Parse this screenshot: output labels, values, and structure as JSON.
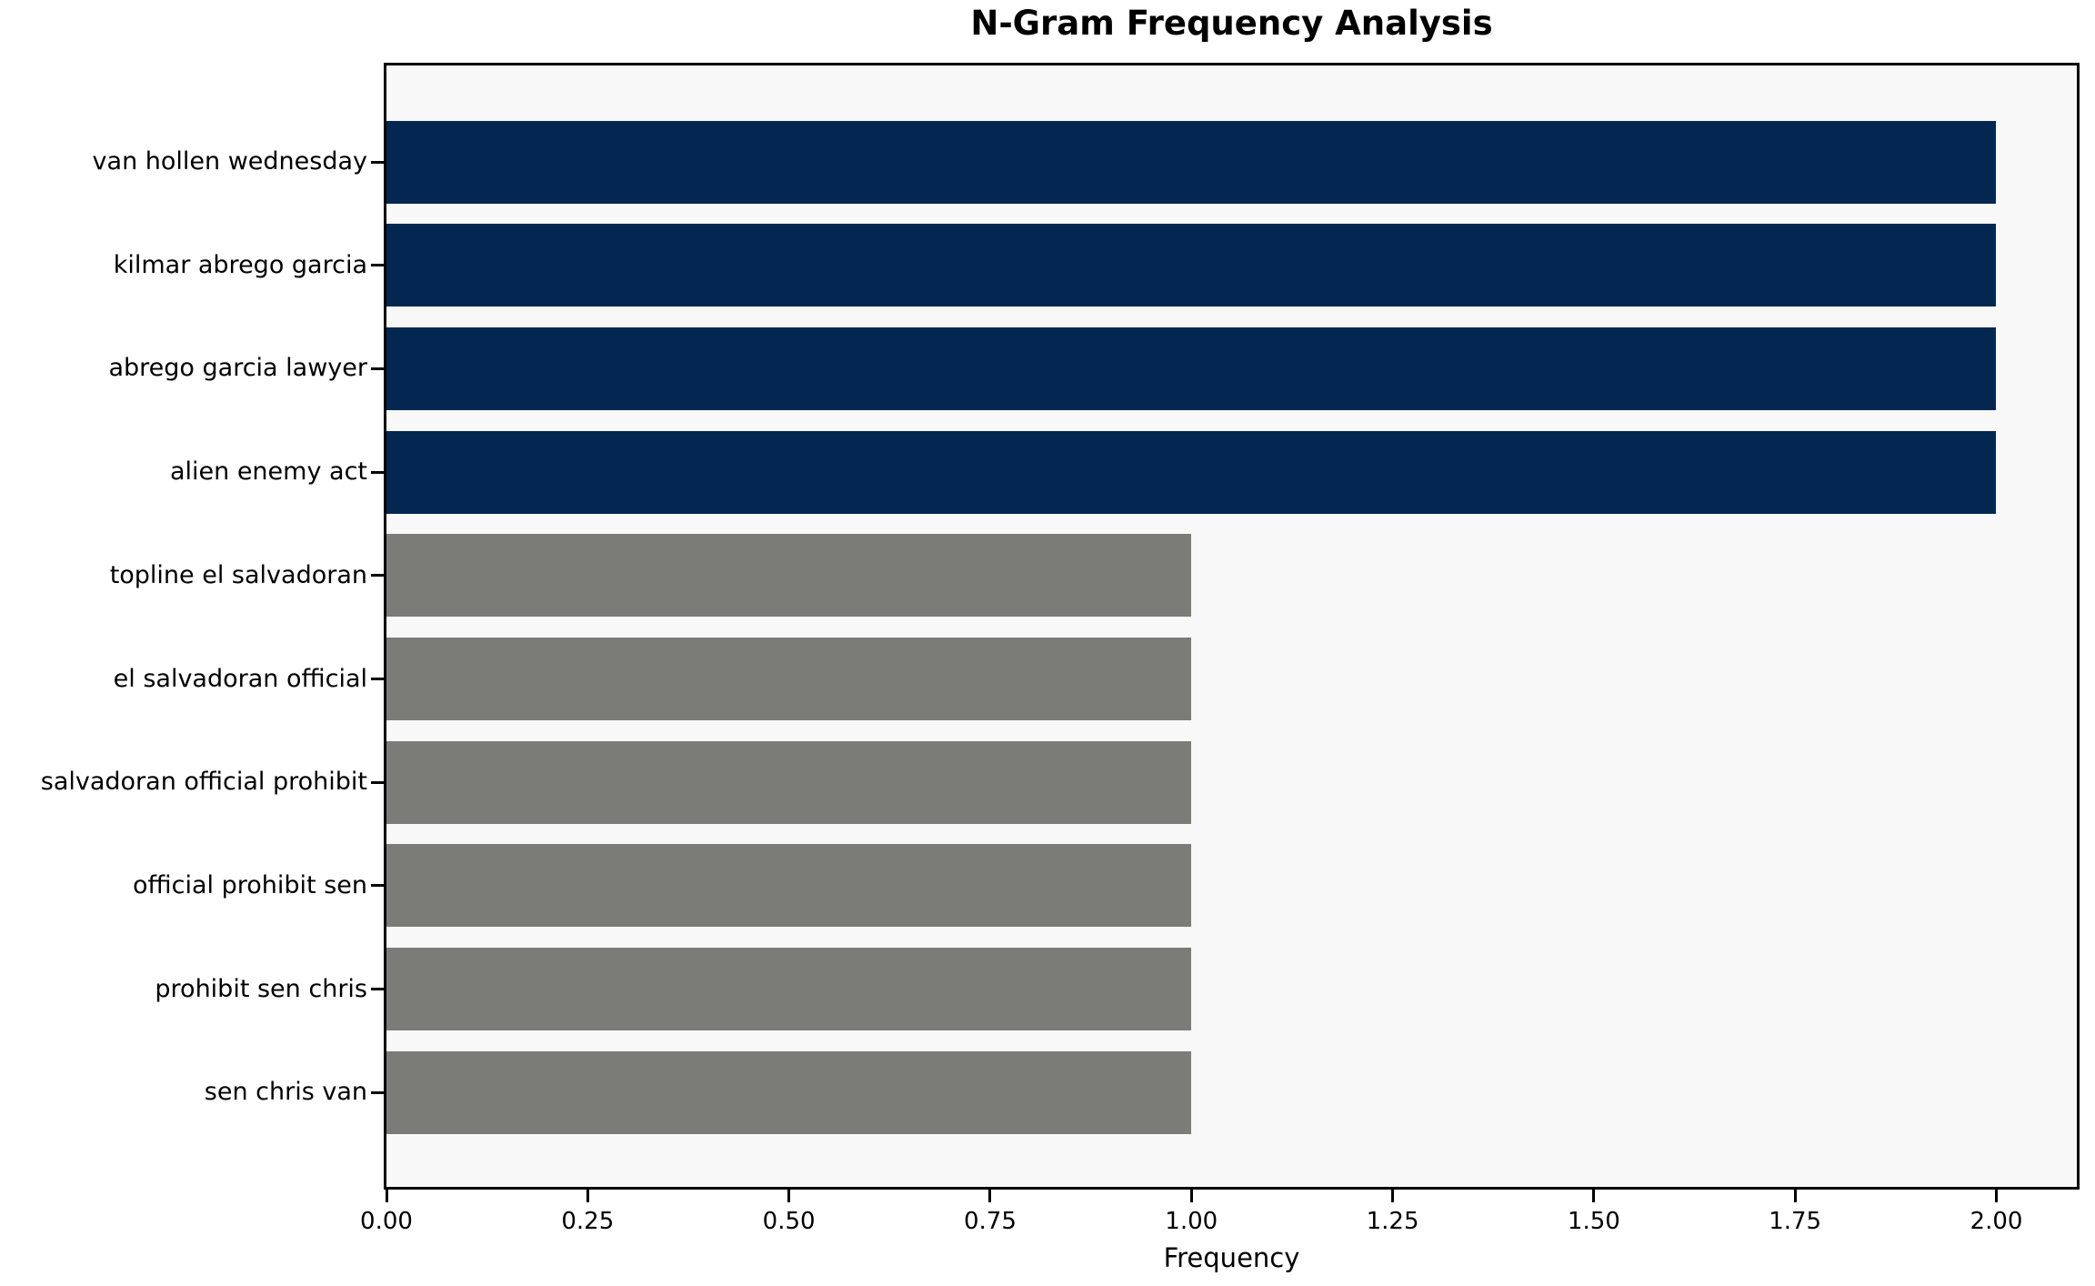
{
  "chart_data": {
    "type": "bar",
    "orientation": "horizontal",
    "title": "N-Gram Frequency Analysis",
    "xlabel": "Frequency",
    "ylabel": "",
    "categories": [
      "van hollen wednesday",
      "kilmar abrego garcia",
      "abrego garcia lawyer",
      "alien enemy act",
      "topline el salvadoran",
      "el salvadoran official",
      "salvadoran official prohibit",
      "official prohibit sen",
      "prohibit sen chris",
      "sen chris van"
    ],
    "values": [
      2,
      2,
      2,
      2,
      1,
      1,
      1,
      1,
      1,
      1
    ],
    "bar_colors": [
      "#032750",
      "#032750",
      "#032750",
      "#032750",
      "#7B7B78",
      "#7B7B78",
      "#7B7B78",
      "#7B7B78",
      "#7B7B78",
      "#7B7B78"
    ],
    "xlim": [
      0,
      2.1
    ],
    "x_ticks": [
      {
        "value": 0.0,
        "label": "0.00"
      },
      {
        "value": 0.25,
        "label": "0.25"
      },
      {
        "value": 0.5,
        "label": "0.50"
      },
      {
        "value": 0.75,
        "label": "0.75"
      },
      {
        "value": 1.0,
        "label": "1.00"
      },
      {
        "value": 1.25,
        "label": "1.25"
      },
      {
        "value": 1.5,
        "label": "1.50"
      },
      {
        "value": 1.75,
        "label": "1.75"
      },
      {
        "value": 2.0,
        "label": "2.00"
      }
    ],
    "grid": false,
    "legend": false,
    "colors": {
      "bar_high": "#032750",
      "bar_low": "#7B7B78",
      "plot_bg": "#F8F8F8",
      "figure_bg": "#FFFFFF",
      "axis": "#000000",
      "text": "#000000"
    }
  }
}
